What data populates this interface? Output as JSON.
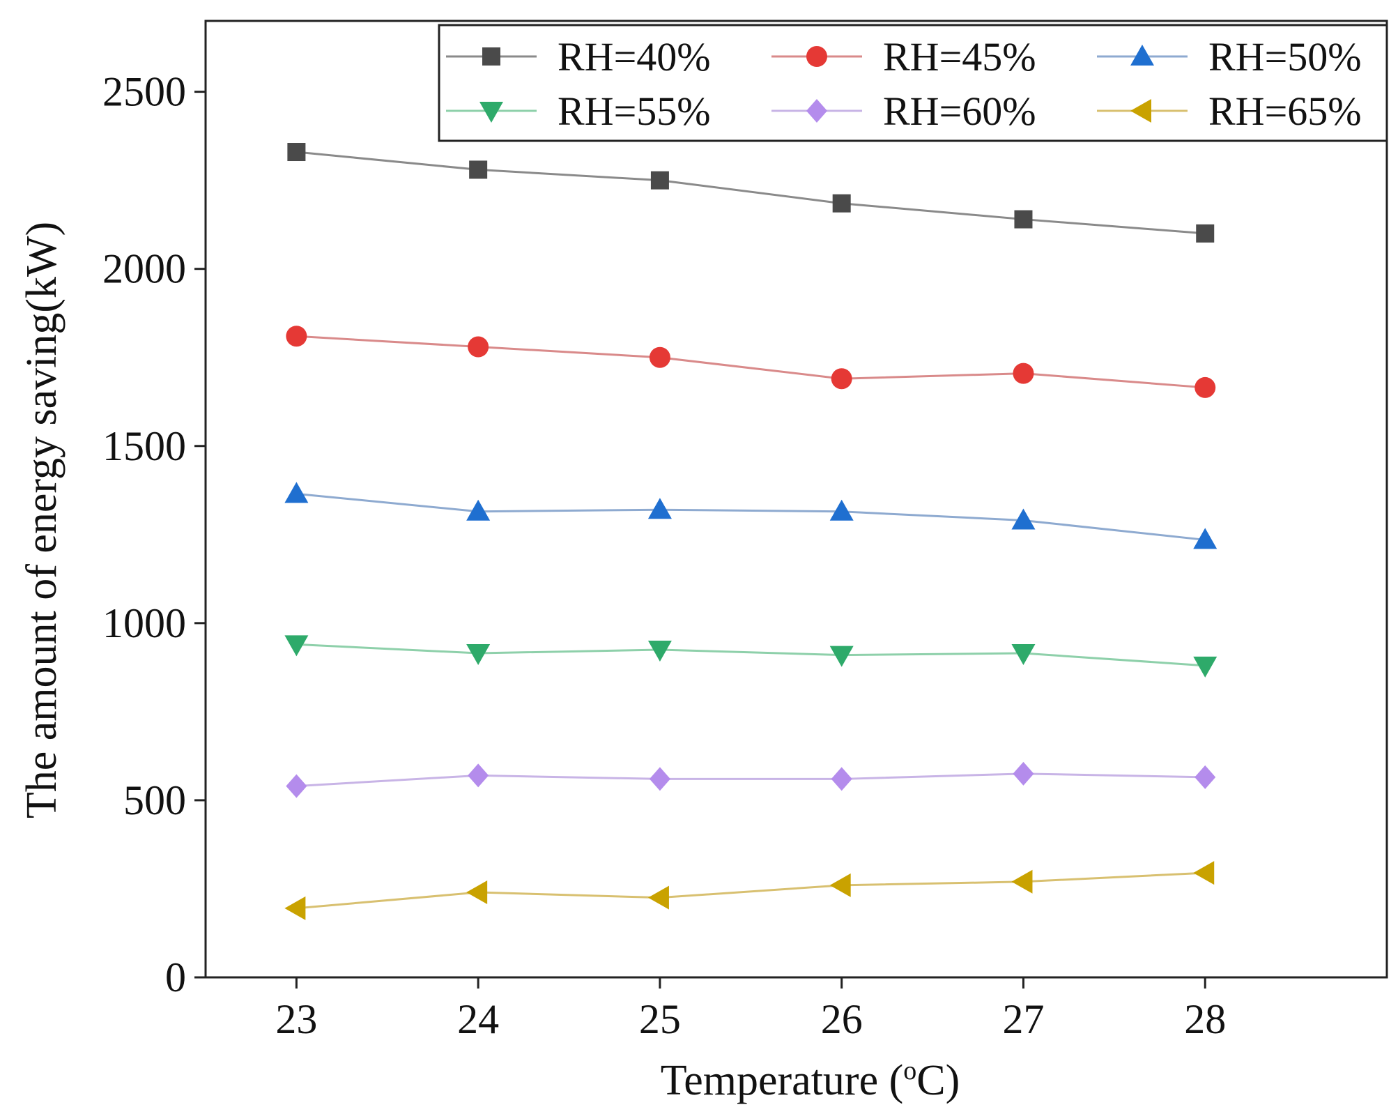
{
  "chart_data": {
    "type": "line",
    "xlabel": "Temperature (°C)",
    "xlabel_parts": {
      "pre": "Temperature (",
      "sup": "o",
      "post": "C)"
    },
    "ylabel": "The amount of energy saving(kW)",
    "x": [
      23,
      24,
      25,
      26,
      27,
      28
    ],
    "xlim": [
      22.5,
      29.0
    ],
    "ylim": [
      0,
      2700
    ],
    "yticks": [
      0,
      500,
      1000,
      1500,
      2000,
      2500
    ],
    "legend_position": "top-right",
    "series": [
      {
        "name": "RH=40%",
        "marker": "square",
        "color": "#4a4a4a",
        "line_color": "#8a8a8a",
        "values": [
          2330,
          2280,
          2250,
          2185,
          2140,
          2100
        ]
      },
      {
        "name": "RH=45%",
        "marker": "circle",
        "color": "#e53935",
        "line_color": "#d98a8a",
        "values": [
          1810,
          1780,
          1750,
          1690,
          1705,
          1665
        ]
      },
      {
        "name": "RH=50%",
        "marker": "triangle-up",
        "color": "#1f6fd0",
        "line_color": "#8eaad0",
        "values": [
          1365,
          1315,
          1320,
          1315,
          1290,
          1235
        ]
      },
      {
        "name": "RH=55%",
        "marker": "triangle-down",
        "color": "#2eaa6a",
        "line_color": "#8ed0aa",
        "values": [
          940,
          915,
          925,
          910,
          915,
          880
        ]
      },
      {
        "name": "RH=60%",
        "marker": "diamond",
        "color": "#b48cec",
        "line_color": "#c8b4e6",
        "values": [
          540,
          570,
          560,
          560,
          575,
          565
        ]
      },
      {
        "name": "RH=65%",
        "marker": "triangle-left",
        "color": "#c9a200",
        "line_color": "#d8c070",
        "values": [
          195,
          240,
          225,
          260,
          270,
          295
        ]
      }
    ]
  }
}
